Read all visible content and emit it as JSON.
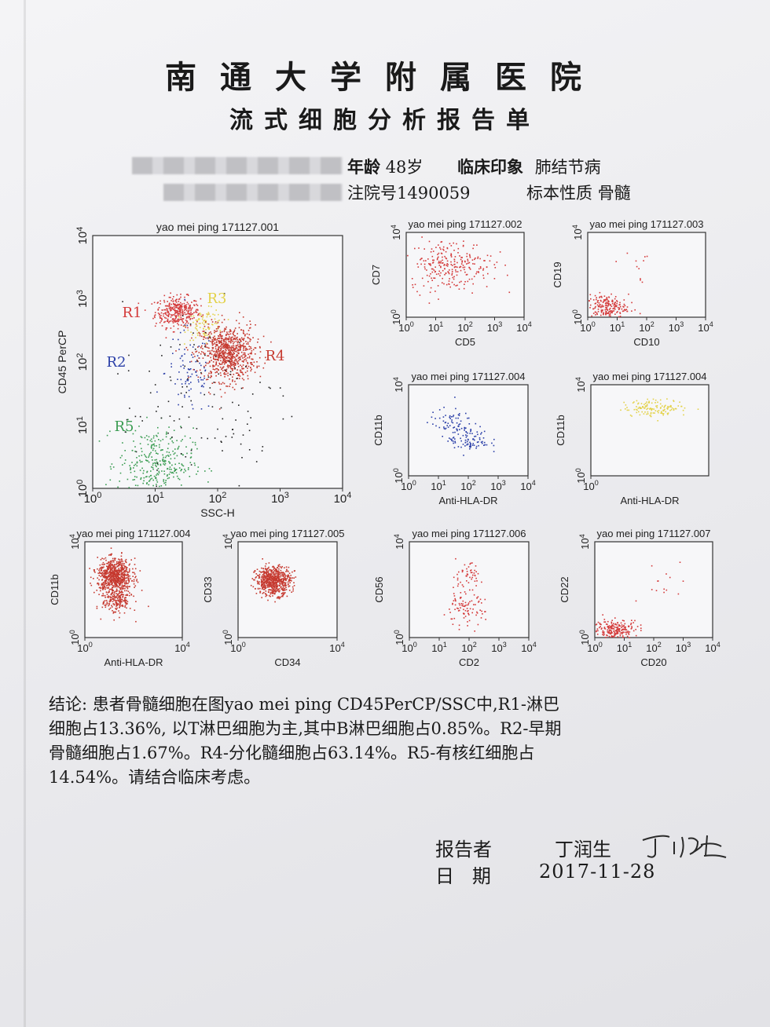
{
  "header": {
    "hospital": "南通大学附属医院",
    "report_title": "流式细胞分析报告单"
  },
  "patient": {
    "age_label": "年龄",
    "age_value": "48岁",
    "impression_label": "临床印象",
    "impression_value": "肺结节病",
    "admission_label": "注院号",
    "admission_value": "1490059",
    "specimen_label": "标本性质",
    "specimen_value": "骨髓"
  },
  "chart_data": [
    {
      "type": "scatter",
      "title": "yao mei ping 171127.001",
      "xlabel": "SSC-H",
      "ylabel": "CD45 PerCP",
      "xticks": [
        "10^0",
        "10^1",
        "10^2",
        "10^3",
        "10^4"
      ],
      "yticks": [
        "10^0",
        "10^1",
        "10^2",
        "10^3",
        "10^4"
      ],
      "scale": "log",
      "xlim": [
        0,
        4
      ],
      "ylim": [
        0,
        4
      ],
      "series": [
        {
          "name": "R1",
          "color": "#d43a3a",
          "clusters": [
            {
              "x": 1.35,
              "y": 2.8,
              "sx": 0.18,
              "sy": 0.12,
              "n": 340
            }
          ]
        },
        {
          "name": "R2",
          "color": "#2b3fa8",
          "clusters": [
            {
              "x": 1.55,
              "y": 1.85,
              "sx": 0.2,
              "sy": 0.35,
              "n": 90
            }
          ]
        },
        {
          "name": "R3",
          "color": "#e3d24a",
          "clusters": [
            {
              "x": 1.8,
              "y": 2.6,
              "sx": 0.15,
              "sy": 0.12,
              "n": 90
            }
          ]
        },
        {
          "name": "R4",
          "color": "#c63a30",
          "clusters": [
            {
              "x": 2.15,
              "y": 2.15,
              "sx": 0.22,
              "sy": 0.22,
              "n": 800
            }
          ]
        },
        {
          "name": "R5",
          "color": "#3a9c52",
          "clusters": [
            {
              "x": 1.0,
              "y": 0.4,
              "sx": 0.3,
              "sy": 0.28,
              "n": 330
            }
          ]
        },
        {
          "name": "",
          "color": "#222222",
          "clusters": [
            {
              "x": 1.8,
              "y": 1.4,
              "sx": 0.7,
              "sy": 0.8,
              "n": 120
            }
          ]
        }
      ]
    },
    {
      "type": "scatter",
      "title": "yao mei ping 171127.002",
      "xlabel": "CD5",
      "ylabel": "CD7",
      "xticks": [
        "10^0",
        "10^1",
        "10^2",
        "10^3",
        "10^4"
      ],
      "scale": "log",
      "xlim": [
        0,
        4
      ],
      "ylim": [
        0,
        4
      ],
      "series": [
        {
          "color": "#d43a3a",
          "clusters": [
            {
              "x": 1.5,
              "y": 2.5,
              "sx": 0.7,
              "sy": 0.6,
              "n": 260
            }
          ]
        }
      ]
    },
    {
      "type": "scatter",
      "title": "yao mei ping 171127.003",
      "xlabel": "CD10",
      "ylabel": "CD19",
      "xticks": [
        "10^0",
        "10^1",
        "10^2",
        "10^3",
        "10^4"
      ],
      "scale": "log",
      "xlim": [
        0,
        4
      ],
      "ylim": [
        0,
        4
      ],
      "series": [
        {
          "color": "#d43a3a",
          "clusters": [
            {
              "x": 0.6,
              "y": 0.5,
              "sx": 0.35,
              "sy": 0.3,
              "n": 200
            },
            {
              "x": 1.5,
              "y": 2.5,
              "sx": 0.4,
              "sy": 0.6,
              "n": 12
            }
          ]
        }
      ]
    },
    {
      "type": "scatter",
      "title": "yao mei ping 171127.004",
      "xlabel": "Anti-HLA-DR",
      "ylabel": "CD11b",
      "xticks": [
        "10^0",
        "10^1",
        "10^2",
        "10^3",
        "10^4"
      ],
      "scale": "log",
      "xlim": [
        0,
        4
      ],
      "ylim": [
        0,
        4
      ],
      "series": [
        {
          "color": "#2b3fa8",
          "clusters": [
            {
              "x": 1.4,
              "y": 2.4,
              "sx": 0.35,
              "sy": 0.3,
              "n": 60
            },
            {
              "x": 2.0,
              "y": 1.6,
              "sx": 0.35,
              "sy": 0.3,
              "n": 90
            }
          ]
        }
      ]
    },
    {
      "type": "scatter",
      "title": "yao mei ping 171127.004",
      "xlabel": "Anti-HLA-DR",
      "ylabel": "CD11b",
      "xticks": [
        "10^0"
      ],
      "scale": "log",
      "xlim": [
        0,
        4
      ],
      "ylim": [
        0,
        4
      ],
      "series": [
        {
          "color": "#e3d24a",
          "clusters": [
            {
              "x": 2.2,
              "y": 3.0,
              "sx": 0.55,
              "sy": 0.18,
              "n": 130
            }
          ]
        }
      ]
    },
    {
      "type": "scatter",
      "title": "yao mei ping 171127.004",
      "xlabel": "Anti-HLA-DR",
      "ylabel": "CD11b",
      "xticks": [
        "10^0",
        "10^4"
      ],
      "scale": "log",
      "xlim": [
        0,
        4
      ],
      "ylim": [
        0,
        4
      ],
      "series": [
        {
          "color": "#c63a30",
          "clusters": [
            {
              "x": 1.2,
              "y": 2.6,
              "sx": 0.35,
              "sy": 0.35,
              "n": 700
            },
            {
              "x": 1.3,
              "y": 1.6,
              "sx": 0.3,
              "sy": 0.3,
              "n": 200
            }
          ]
        }
      ]
    },
    {
      "type": "scatter",
      "title": "yao mei ping 171127.005",
      "xlabel": "CD34",
      "ylabel": "CD33",
      "xticks": [
        "10^0",
        "10^4"
      ],
      "scale": "log",
      "xlim": [
        0,
        4
      ],
      "ylim": [
        0,
        4
      ],
      "series": [
        {
          "color": "#c63a30",
          "clusters": [
            {
              "x": 1.4,
              "y": 2.4,
              "sx": 0.35,
              "sy": 0.3,
              "n": 650
            }
          ]
        }
      ]
    },
    {
      "type": "scatter",
      "title": "yao mei ping 171127.006",
      "xlabel": "CD2",
      "ylabel": "CD56",
      "xticks": [
        "10^0",
        "10^1",
        "10^2",
        "10^3",
        "10^4"
      ],
      "scale": "log",
      "xlim": [
        0,
        4
      ],
      "ylim": [
        0,
        4
      ],
      "series": [
        {
          "color": "#d43a3a",
          "clusters": [
            {
              "x": 1.9,
              "y": 2.6,
              "sx": 0.25,
              "sy": 0.25,
              "n": 50
            },
            {
              "x": 1.8,
              "y": 1.2,
              "sx": 0.35,
              "sy": 0.35,
              "n": 90
            }
          ]
        }
      ]
    },
    {
      "type": "scatter",
      "title": "yao mei ping 171127.007",
      "xlabel": "CD20",
      "ylabel": "CD22",
      "xticks": [
        "10^0",
        "10^1",
        "10^2",
        "10^3",
        "10^4"
      ],
      "scale": "log",
      "xlim": [
        0,
        4
      ],
      "ylim": [
        0,
        4
      ],
      "series": [
        {
          "color": "#d43a3a",
          "clusters": [
            {
              "x": 0.7,
              "y": 0.35,
              "sx": 0.4,
              "sy": 0.22,
              "n": 230
            },
            {
              "x": 2.2,
              "y": 2.3,
              "sx": 0.5,
              "sy": 0.5,
              "n": 14
            }
          ]
        }
      ]
    }
  ],
  "region_labels": [
    {
      "text": "R1",
      "color": "#d43a3a"
    },
    {
      "text": "R2",
      "color": "#2b3fa8"
    },
    {
      "text": "R3",
      "color": "#e3d24a"
    },
    {
      "text": "R4",
      "color": "#c63a30"
    },
    {
      "text": "R5",
      "color": "#3a9c52"
    }
  ],
  "conclusion": {
    "lines": [
      "结论: 患者骨髓细胞在图yao mei ping CD45PerCP/SSC中,R1-淋巴",
      "细胞占13.36%, 以T淋巴细胞为主,其中B淋巴细胞占0.85%。R2-早期",
      "骨髓细胞占1.67%。R4-分化髓细胞占63.14%。R5-有核红细胞占",
      "14.54%。请结合临床考虑。"
    ]
  },
  "footer": {
    "reporter_label": "报告者",
    "reporter_name": "丁润生",
    "signature": "丁润生",
    "date_label": "日   期",
    "date_value": "2017-11-28"
  }
}
